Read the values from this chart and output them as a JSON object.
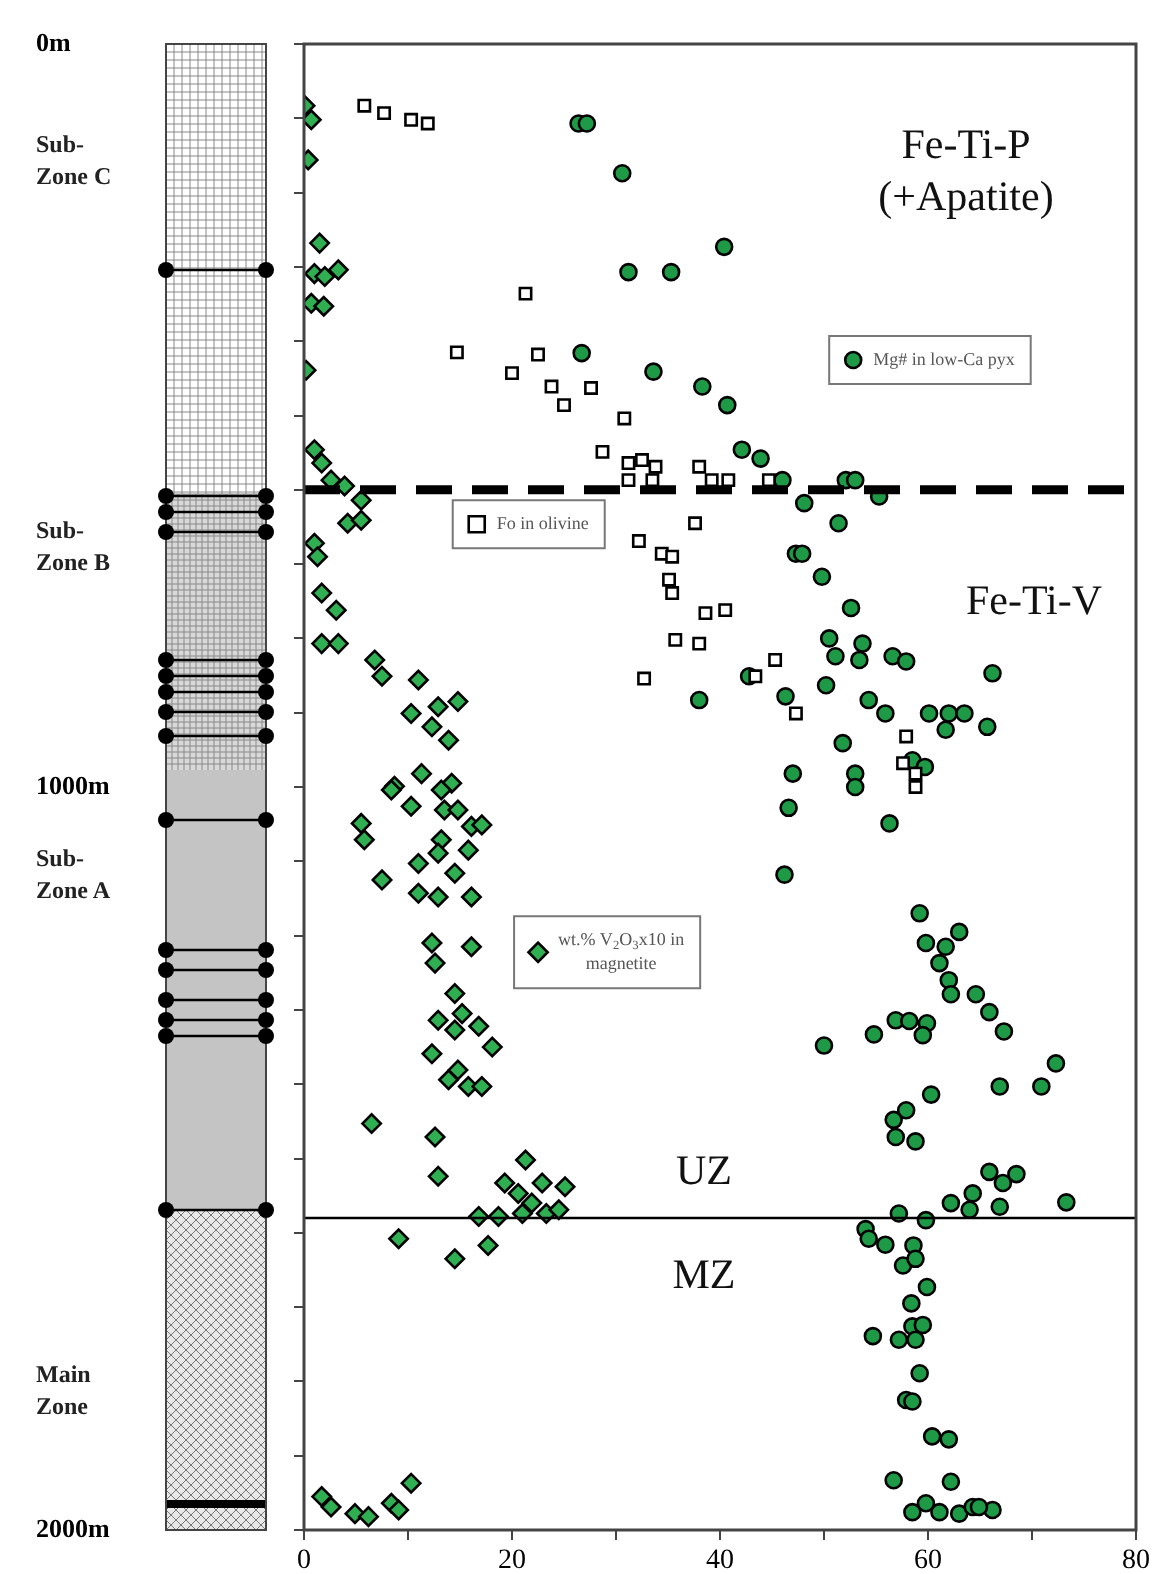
{
  "chart_data": {
    "type": "scatter",
    "xlim": [
      0,
      80
    ],
    "xticks": [
      0,
      {
        "value": 10,
        "label": null
      },
      20,
      {
        "value": 30,
        "label": null
      },
      40,
      {
        "value": 50,
        "label": null
      },
      60,
      {
        "value": 70,
        "label": null
      },
      80
    ],
    "ylim": [
      2000,
      0
    ],
    "yticks": [
      {
        "value": 0,
        "label": "0m"
      },
      {
        "value": 100,
        "label": null
      },
      {
        "value": 200,
        "label": null
      },
      {
        "value": 300,
        "label": null
      },
      {
        "value": 400,
        "label": null
      },
      {
        "value": 500,
        "label": null
      },
      {
        "value": 600,
        "label": null
      },
      {
        "value": 700,
        "label": null
      },
      {
        "value": 800,
        "label": null
      },
      {
        "value": 900,
        "label": null
      },
      {
        "value": 1000,
        "label": "1000m"
      },
      {
        "value": 1100,
        "label": null
      },
      {
        "value": 1200,
        "label": null
      },
      {
        "value": 1300,
        "label": null
      },
      {
        "value": 1400,
        "label": null
      },
      {
        "value": 1500,
        "label": null
      },
      {
        "value": 1600,
        "label": null
      },
      {
        "value": 1700,
        "label": null
      },
      {
        "value": 1800,
        "label": null
      },
      {
        "value": 1900,
        "label": null
      },
      {
        "value": 2000,
        "label": "2000m"
      }
    ],
    "legend": "top right",
    "series": [
      {
        "name": "Mg# in low-Ca pyx",
        "marker": "circle",
        "color": "#1e9a46",
        "x": [
          26.4,
          27.2,
          30.6,
          31.2,
          35.3,
          26.7,
          33.6,
          38,
          40.4,
          38.3,
          40.7,
          42.1,
          43.9,
          46,
          48.1,
          52.1,
          53,
          55.3,
          51.4,
          47.3,
          47.9,
          49.8,
          52.6,
          50.5,
          53.7,
          53.4,
          51.1,
          56.6,
          57.9,
          66.2,
          42.8,
          46.3,
          50.2,
          54.3,
          55.9,
          60.1,
          62,
          63.5,
          65.7,
          61.7,
          51.8,
          53,
          47,
          58.5,
          59.7,
          53,
          46.6,
          56.3,
          46.2,
          59.2,
          59.8,
          61.7,
          63,
          61.1,
          62,
          62.2,
          64.6,
          65.9,
          67.3,
          56.9,
          58.2,
          59.9,
          59.5,
          54.8,
          50,
          72.3,
          70.9,
          66.9,
          60.3,
          57.9,
          56.7,
          56.9,
          58.8,
          65.9,
          68.5,
          67.2,
          64.3,
          73.3,
          62.2,
          57.2,
          59.8,
          64,
          66.9,
          54,
          54.3,
          55.9,
          58.6,
          57.6,
          58.8,
          59.9,
          58.4,
          58.5,
          57.2,
          58.8,
          59.5,
          54.7,
          59.2,
          57.9,
          58.5,
          60.4,
          62,
          56.7,
          62.2,
          58.5,
          59.8,
          61.1,
          63,
          64.3,
          66.2,
          64.9
        ],
        "values": [
          107,
          107,
          174,
          307,
          307,
          416,
          441,
          883,
          273,
          461,
          486,
          546,
          558,
          587,
          618,
          587,
          587,
          609,
          645,
          686,
          686,
          717,
          759,
          800,
          807,
          829,
          824,
          824,
          831,
          847,
          851,
          878,
          863,
          883,
          901,
          901,
          901,
          901,
          919,
          923,
          941,
          982,
          982,
          964,
          973,
          1000,
          1028,
          1049,
          1118,
          1170,
          1210,
          1215,
          1195,
          1237,
          1260,
          1279,
          1279,
          1303,
          1329,
          1314,
          1315,
          1318,
          1334,
          1333,
          1348,
          1372,
          1403,
          1403,
          1414,
          1435,
          1448,
          1471,
          1477,
          1518,
          1521,
          1533,
          1547,
          1559,
          1560,
          1574,
          1583,
          1569,
          1565,
          1595,
          1608,
          1616,
          1617,
          1644,
          1635,
          1673,
          1695,
          1726,
          1744,
          1744,
          1724,
          1739,
          1789,
          1825,
          1827,
          1874,
          1878,
          1933,
          1935,
          1976,
          1964,
          1976,
          1978,
          1969,
          1973,
          1969
        ]
      },
      {
        "name": "Fo in olivine",
        "marker": "square",
        "color": "#ffffff",
        "x": [
          5.8,
          7.7,
          10.3,
          11.9,
          21.3,
          14.7,
          20,
          22.5,
          23.8,
          25,
          27.6,
          30.8,
          28.7,
          31.2,
          32.5,
          33.8,
          31.2,
          33.5,
          38,
          37.6,
          32.2,
          34.4,
          35.4,
          35.1,
          35.4,
          35.7,
          38,
          32.7,
          39.2,
          40.8,
          44.7,
          38.6,
          40.5,
          45.3,
          43.4,
          47.3,
          57.9,
          57.6,
          58.8,
          58.8
        ],
        "values": [
          83,
          93,
          102,
          107,
          336,
          415,
          443,
          418,
          461,
          486,
          463,
          504,
          549,
          564,
          560,
          569,
          587,
          587,
          569,
          645,
          669,
          686,
          690,
          721,
          739,
          802,
          807,
          854,
          587,
          587,
          587,
          766,
          762,
          829,
          851,
          901,
          932,
          968,
          982,
          1000
        ]
      },
      {
        "name": "wt.% V$_{2}$O$_{3}$x10 in magnetite",
        "marker": "diamond",
        "color": "#2fae52",
        "x": [
          0.1,
          0.7,
          0.4,
          1.5,
          1,
          2,
          3.3,
          0.7,
          1.9,
          0.2,
          1,
          1.7,
          2.6,
          3.9,
          5.5,
          4.2,
          5.5,
          1,
          1.3,
          1.7,
          3.1,
          1.7,
          3.3,
          6.8,
          7.5,
          11,
          14.8,
          10.3,
          12.9,
          12.3,
          13.9,
          8.7,
          11.3,
          14.2,
          8.4,
          10.3,
          13.2,
          13.5,
          14.8,
          5.5,
          5.8,
          16.1,
          17.1,
          13.2,
          15.8,
          11,
          12.9,
          7.5,
          14.5,
          11,
          12.9,
          16.1,
          12.3,
          12.6,
          16.1,
          14.5,
          12.9,
          14.5,
          15.2,
          16.8,
          12.3,
          18.1,
          13.9,
          14.8,
          15.8,
          17.1,
          6.5,
          12.6,
          12.9,
          21.3,
          19.3,
          22.9,
          25.1,
          20.6,
          16.8,
          18.7,
          21,
          23.3,
          24.5,
          21.9,
          9.1,
          17.7,
          14.5,
          1.7,
          2.6,
          4.9,
          6.2,
          8.4,
          9.1,
          10.3
        ],
        "values": [
          83,
          102,
          156,
          268,
          309,
          313,
          304,
          349,
          353,
          439,
          546,
          564,
          587,
          595,
          614,
          645,
          641,
          672,
          690,
          739,
          762,
          807,
          807,
          829,
          851,
          856,
          885,
          901,
          892,
          919,
          937,
          999,
          982,
          995,
          1004,
          1026,
          1004,
          1031,
          1031,
          1049,
          1071,
          1053,
          1051,
          1071,
          1085,
          1103,
          1089,
          1125,
          1116,
          1143,
          1148,
          1148,
          1210,
          1237,
          1215,
          1278,
          1314,
          1327,
          1305,
          1322,
          1359,
          1350,
          1394,
          1381,
          1403,
          1403,
          1453,
          1471,
          1524,
          1502,
          1533,
          1533,
          1538,
          1547,
          1578,
          1578,
          1574,
          1574,
          1569,
          1560,
          1608,
          1617,
          1635,
          1955,
          1969,
          1978,
          1982,
          1964,
          1973,
          1937
        ]
      }
    ],
    "ref_lines": [
      {
        "axis": "y",
        "value": 600,
        "color": "#000000",
        "line_style": "dashed"
      },
      {
        "axis": "y",
        "value": 1580,
        "color": "#000000",
        "line_style": "solid"
      }
    ],
    "annotations": [
      "Fe-Ti-P (+Apatite)",
      "Fe-Ti-V",
      "UZ",
      "MZ",
      "Sub-Zone C",
      "Sub-Zone B",
      "Sub-Zone A",
      "Main Zone"
    ]
  }
}
